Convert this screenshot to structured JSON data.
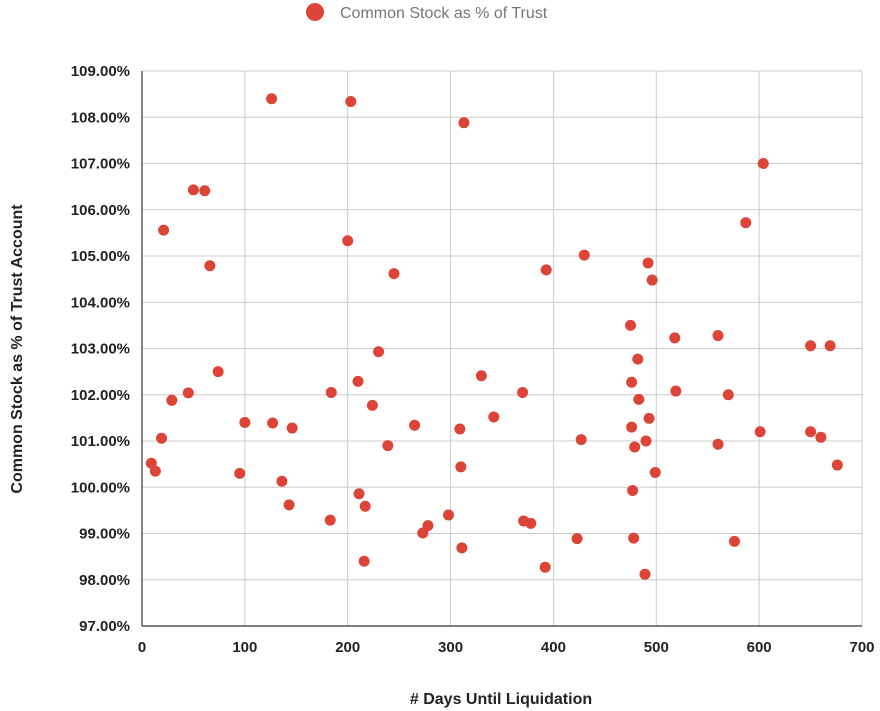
{
  "chart_data": {
    "type": "scatter",
    "title": "",
    "xlabel": "# Days Until Liquidation",
    "ylabel": "Common Stock as % of Trust Account",
    "xlim": [
      0,
      700
    ],
    "ylim": [
      97,
      109
    ],
    "x_ticks": [
      0,
      100,
      200,
      300,
      400,
      500,
      600,
      700
    ],
    "y_ticks": [
      97,
      98,
      99,
      100,
      101,
      102,
      103,
      104,
      105,
      106,
      107,
      108,
      109
    ],
    "x_tick_labels": [
      "0",
      "100",
      "200",
      "300",
      "400",
      "500",
      "600",
      "700"
    ],
    "y_tick_labels": [
      "97.00%",
      "98.00%",
      "99.00%",
      "100.00%",
      "101.00%",
      "102.00%",
      "103.00%",
      "104.00%",
      "105.00%",
      "106.00%",
      "107.00%",
      "108.00%",
      "109.00%"
    ],
    "grid": true,
    "legend_position": "top",
    "series": [
      {
        "name": "Common Stock as % of Trust",
        "color": "#db4437",
        "points": [
          [
            9,
            100.52
          ],
          [
            13,
            100.35
          ],
          [
            19,
            101.06
          ],
          [
            21,
            105.56
          ],
          [
            29,
            101.88
          ],
          [
            45,
            102.04
          ],
          [
            50,
            106.43
          ],
          [
            61,
            106.41
          ],
          [
            66,
            104.79
          ],
          [
            74,
            102.5
          ],
          [
            95,
            100.3
          ],
          [
            100,
            101.4
          ],
          [
            126,
            108.4
          ],
          [
            127,
            101.39
          ],
          [
            136,
            100.13
          ],
          [
            143,
            99.62
          ],
          [
            146,
            101.28
          ],
          [
            183,
            99.29
          ],
          [
            184,
            102.05
          ],
          [
            200,
            105.33
          ],
          [
            203,
            108.34
          ],
          [
            210,
            102.29
          ],
          [
            211,
            99.86
          ],
          [
            216,
            98.4
          ],
          [
            217,
            99.59
          ],
          [
            224,
            101.77
          ],
          [
            230,
            102.93
          ],
          [
            239,
            100.9
          ],
          [
            245,
            104.62
          ],
          [
            265,
            101.34
          ],
          [
            273,
            99.01
          ],
          [
            278,
            99.17
          ],
          [
            298,
            99.4
          ],
          [
            309,
            101.26
          ],
          [
            310,
            100.44
          ],
          [
            311,
            98.69
          ],
          [
            313,
            107.88
          ],
          [
            330,
            102.41
          ],
          [
            342,
            101.52
          ],
          [
            370,
            102.05
          ],
          [
            371,
            99.27
          ],
          [
            378,
            99.22
          ],
          [
            392,
            98.27
          ],
          [
            393,
            104.7
          ],
          [
            423,
            98.89
          ],
          [
            427,
            101.03
          ],
          [
            430,
            105.02
          ],
          [
            475,
            103.5
          ],
          [
            476,
            102.27
          ],
          [
            476,
            101.3
          ],
          [
            477,
            99.93
          ],
          [
            478,
            98.9
          ],
          [
            479,
            100.87
          ],
          [
            482,
            102.77
          ],
          [
            483,
            101.9
          ],
          [
            489,
            98.12
          ],
          [
            490,
            101.0
          ],
          [
            492,
            104.85
          ],
          [
            493,
            101.49
          ],
          [
            496,
            104.48
          ],
          [
            499,
            100.32
          ],
          [
            518,
            103.23
          ],
          [
            519,
            102.08
          ],
          [
            560,
            103.28
          ],
          [
            560,
            100.93
          ],
          [
            570,
            102.0
          ],
          [
            576,
            98.83
          ],
          [
            587,
            105.72
          ],
          [
            601,
            101.2
          ],
          [
            604,
            107.0
          ],
          [
            650,
            103.06
          ],
          [
            650,
            101.2
          ],
          [
            660,
            101.08
          ],
          [
            669,
            103.06
          ],
          [
            676,
            100.48
          ]
        ]
      }
    ]
  }
}
